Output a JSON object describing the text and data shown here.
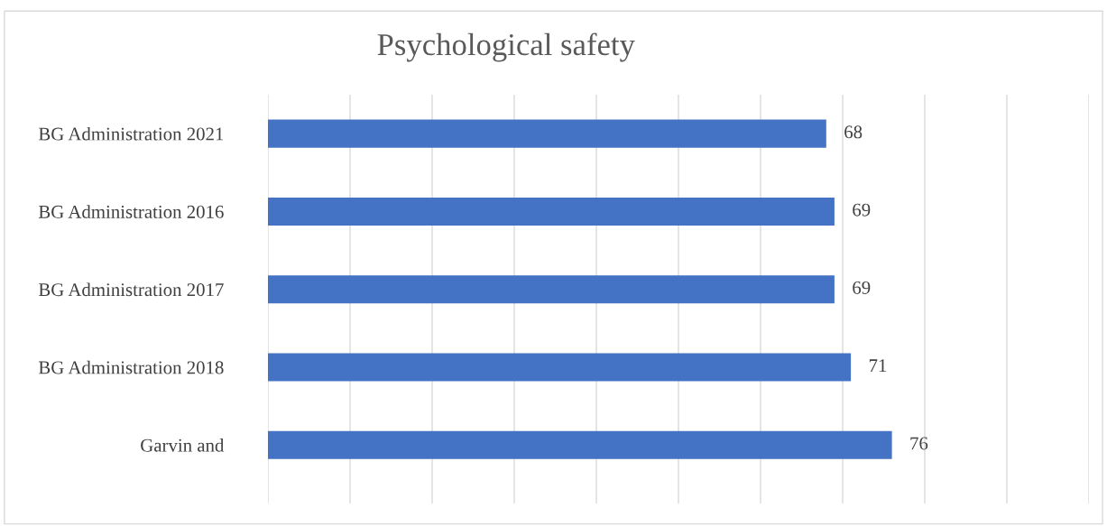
{
  "chart_data": {
    "type": "bar",
    "title": "Psychological safety",
    "orientation": "horizontal",
    "categories": [
      "BG Administration 2021",
      "BG Administration 2016",
      "BG Administration 2017",
      "BG Administration 2018",
      "Garvin and"
    ],
    "values": [
      68,
      69,
      69,
      71,
      76
    ],
    "color": "#4472c4",
    "data_labels": true,
    "xlim": [
      0,
      100
    ],
    "xticks": [
      {
        "value": 0,
        "label": null
      },
      {
        "value": 10,
        "label": null
      },
      {
        "value": 20,
        "label": null
      },
      {
        "value": 30,
        "label": null
      },
      {
        "value": 40,
        "label": null
      },
      {
        "value": 50,
        "label": null
      },
      {
        "value": 60,
        "label": null
      },
      {
        "value": 70,
        "label": null
      },
      {
        "value": 80,
        "label": null
      },
      {
        "value": 90,
        "label": null
      },
      {
        "value": 100,
        "label": null
      }
    ],
    "grid": "x",
    "tick_labels": "y"
  }
}
